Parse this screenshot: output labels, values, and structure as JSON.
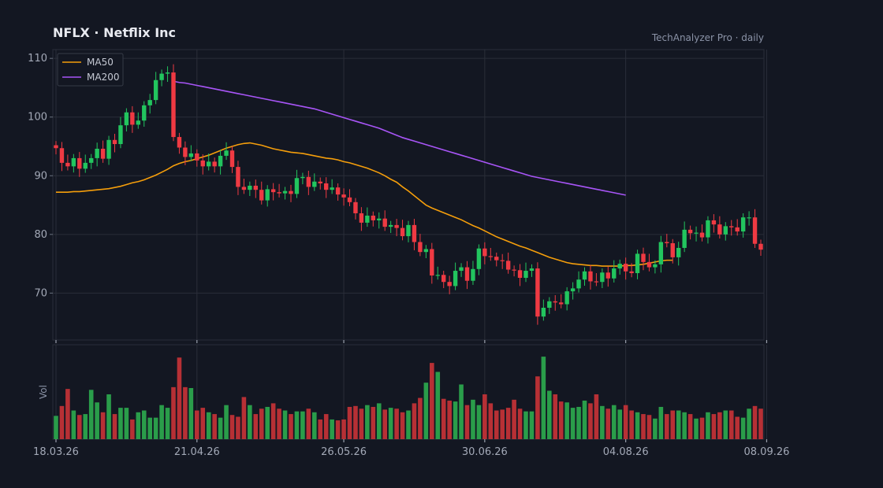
{
  "header": {
    "title": "NFLX  ·  Netflix Inc",
    "subtitle": "TechAnalyzer Pro · daily"
  },
  "chart_data": {
    "type": "candlestick",
    "title": "NFLX  ·  Netflix Inc",
    "subtitle": "TechAnalyzer Pro · daily",
    "ylim": [
      62,
      111.5
    ],
    "yticks": [
      70,
      80,
      90,
      100,
      110
    ],
    "volume_label": "Vol",
    "x_tick_labels": [
      "18.03.26",
      "21.04.26",
      "26.05.26",
      "30.06.26",
      "04.08.26",
      "08.09.26"
    ],
    "grid": true,
    "legend": {
      "position": "top-left",
      "entries": [
        "MA50",
        "MA200"
      ]
    },
    "colors": {
      "up": "#22c55e",
      "down": "#ef3a43",
      "ma50": "#f59e0b",
      "ma200": "#a855f7",
      "vol_up": "#2a9d4a",
      "vol_down": "#b73035",
      "background": "#131722",
      "grid": "#2a2e39"
    },
    "close": [
      94.7,
      92.2,
      91.6,
      93.0,
      91.2,
      92.2,
      93.0,
      94.6,
      92.9,
      96.1,
      95.4,
      98.6,
      100.8,
      98.7,
      99.4,
      102.0,
      102.9,
      106.3,
      107.4,
      107.6,
      96.6,
      94.8,
      93.2,
      93.8,
      92.6,
      91.6,
      92.4,
      91.6,
      93.4,
      94.3,
      91.5,
      88.1,
      87.6,
      88.3,
      87.6,
      85.8,
      87.7,
      87.2,
      87.0,
      87.4,
      86.9,
      89.6,
      89.8,
      88.1,
      89.0,
      88.7,
      87.6,
      88.0,
      86.8,
      86.3,
      85.5,
      83.6,
      82.0,
      83.2,
      82.4,
      82.7,
      81.3,
      81.6,
      81.1,
      79.7,
      81.6,
      78.7,
      77.0,
      77.5,
      73.0,
      73.1,
      71.9,
      71.2,
      73.8,
      74.4,
      72.1,
      74.1,
      77.6,
      76.3,
      76.2,
      75.6,
      75.5,
      74.0,
      73.9,
      72.6,
      73.8,
      74.2,
      66.0,
      67.5,
      68.6,
      68.4,
      68.1,
      70.3,
      70.8,
      72.3,
      73.7,
      72.0,
      71.9,
      73.5,
      72.5,
      74.2,
      75.0,
      73.7,
      73.4,
      76.7,
      75.3,
      74.4,
      74.9,
      78.7,
      78.5,
      76.1,
      77.7,
      80.8,
      80.2,
      80.3,
      79.5,
      82.4,
      81.7,
      80.0,
      81.4,
      81.2,
      80.5,
      82.9,
      82.9,
      78.4,
      77.4
    ],
    "ma50": [
      87.2,
      87.2,
      87.2,
      87.3,
      87.3,
      87.4,
      87.5,
      87.6,
      87.7,
      87.8,
      88.0,
      88.2,
      88.5,
      88.8,
      89.0,
      89.3,
      89.7,
      90.1,
      90.6,
      91.1,
      91.7,
      92.1,
      92.4,
      92.6,
      92.9,
      93.2,
      93.5,
      93.9,
      94.3,
      94.7,
      95.0,
      95.3,
      95.5,
      95.6,
      95.4,
      95.2,
      94.9,
      94.6,
      94.4,
      94.2,
      94.0,
      93.9,
      93.8,
      93.6,
      93.4,
      93.2,
      93.0,
      92.9,
      92.7,
      92.4,
      92.2,
      91.9,
      91.6,
      91.3,
      90.9,
      90.5,
      90.0,
      89.4,
      88.9,
      88.1,
      87.4,
      86.6,
      85.8,
      85.0,
      84.5,
      84.1,
      83.7,
      83.3,
      82.9,
      82.5,
      82.0,
      81.5,
      81.1,
      80.6,
      80.1,
      79.6,
      79.2,
      78.8,
      78.4,
      78.0,
      77.7,
      77.3,
      76.9,
      76.5,
      76.1,
      75.8,
      75.5,
      75.2,
      75.0,
      74.9,
      74.8,
      74.7,
      74.7,
      74.6,
      74.6,
      74.6,
      74.6,
      74.7,
      74.7,
      74.8,
      74.9,
      75.1,
      75.3,
      75.5,
      75.6,
      75.6
    ],
    "ma200_start_index": 20,
    "ma200": [
      106.1,
      105.9,
      105.8,
      105.6,
      105.4,
      105.2,
      105.0,
      104.8,
      104.6,
      104.4,
      104.2,
      104.0,
      103.8,
      103.6,
      103.4,
      103.2,
      103.0,
      102.8,
      102.6,
      102.4,
      102.2,
      102.0,
      101.8,
      101.6,
      101.4,
      101.1,
      100.8,
      100.5,
      100.2,
      99.9,
      99.6,
      99.3,
      99.0,
      98.7,
      98.4,
      98.1,
      97.7,
      97.3,
      96.9,
      96.5,
      96.2,
      95.9,
      95.6,
      95.3,
      95.0,
      94.7,
      94.4,
      94.1,
      93.8,
      93.5,
      93.2,
      92.9,
      92.6,
      92.3,
      92.0,
      91.7,
      91.4,
      91.1,
      90.8,
      90.5,
      90.2,
      89.9,
      89.7,
      89.5,
      89.3,
      89.1,
      88.9,
      88.7,
      88.5,
      88.3,
      88.1,
      87.9,
      87.7,
      87.5,
      87.3,
      87.1,
      86.9,
      86.7
    ],
    "volume": [
      26,
      37,
      56,
      32,
      27,
      28,
      55,
      41,
      30,
      50,
      28,
      35,
      35,
      22,
      30,
      32,
      24,
      24,
      38,
      35,
      58,
      91,
      58,
      57,
      32,
      35,
      30,
      28,
      24,
      38,
      27,
      25,
      47,
      38,
      28,
      34,
      36,
      40,
      34,
      32,
      28,
      31,
      31,
      34,
      30,
      22,
      28,
      22,
      21,
      22,
      36,
      37,
      34,
      38,
      36,
      40,
      33,
      35,
      34,
      30,
      32,
      40,
      46,
      63,
      85,
      75,
      45,
      43,
      42,
      61,
      38,
      44,
      38,
      50,
      40,
      32,
      33,
      35,
      44,
      34,
      31,
      31,
      70,
      92,
      54,
      50,
      42,
      41,
      35,
      36,
      43,
      40,
      50,
      37,
      34,
      38,
      33,
      38,
      32,
      30,
      28,
      27,
      23,
      36,
      28,
      32,
      32,
      30,
      28,
      23,
      24,
      30,
      28,
      30,
      32,
      32,
      25,
      24,
      34,
      37,
      34
    ],
    "volume_max": 100
  }
}
